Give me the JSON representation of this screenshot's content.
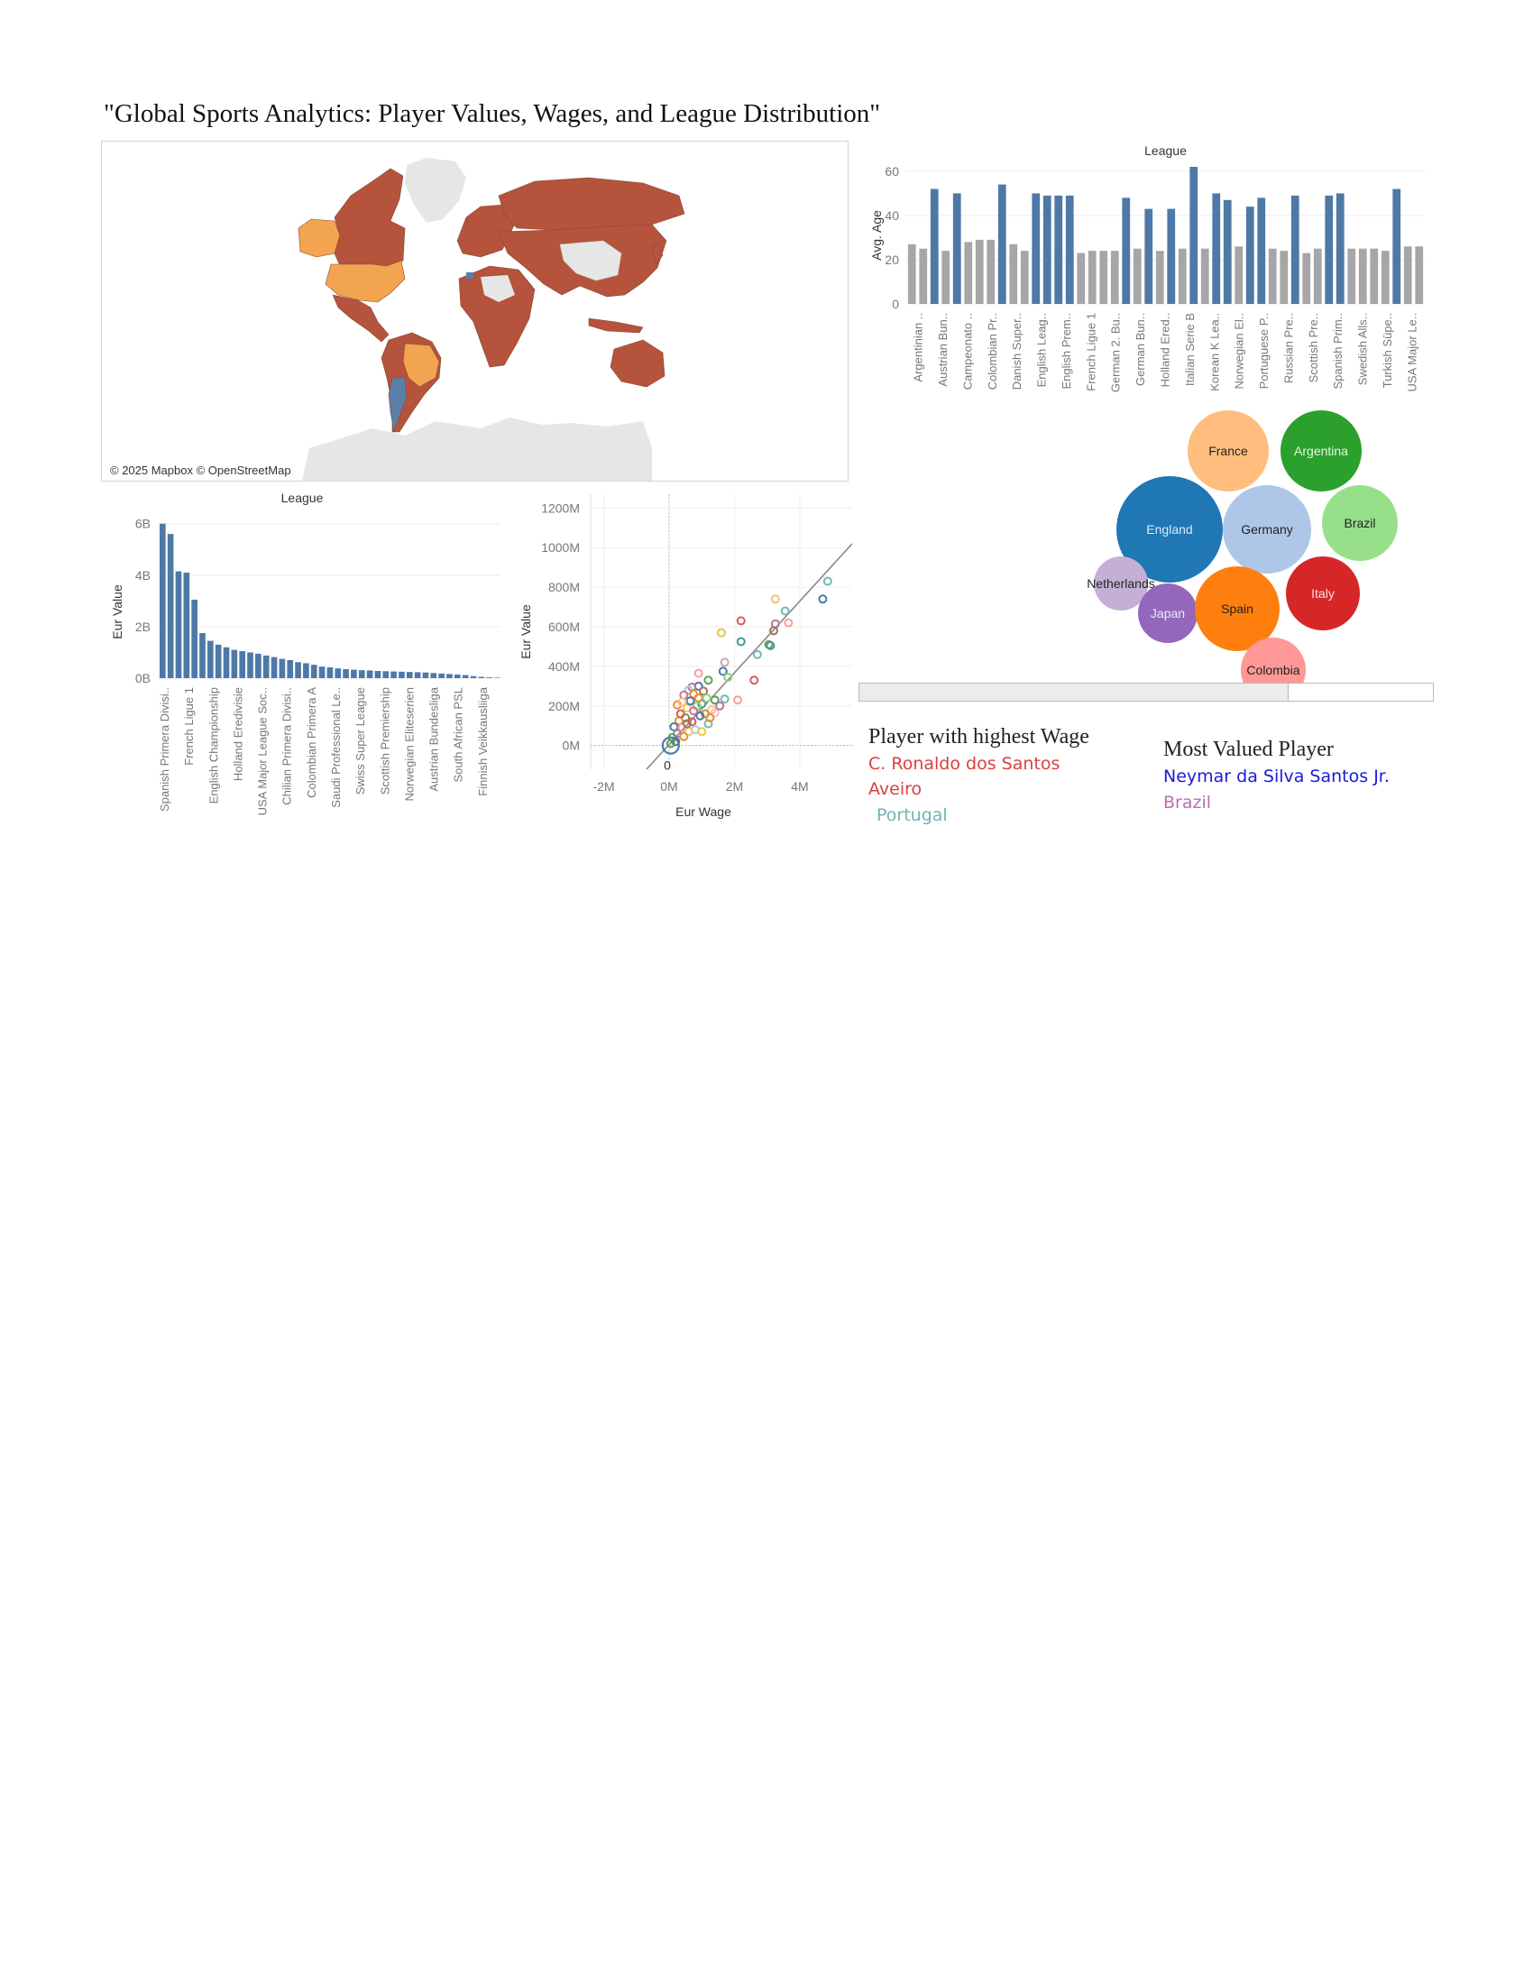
{
  "page": {
    "title": "\"Global Sports Analytics: Player Values, Wages, and League Distribution\""
  },
  "map": {
    "attribution": "© 2025 Mapbox © OpenStreetMap",
    "colors": {
      "default": "#b5533c",
      "highlight": "#f2a450",
      "blue": "#5b7fa6",
      "land": "#e6e6e6"
    }
  },
  "info": {
    "wage_heading": "Player with highest Wage",
    "wage_player_line1": "C. Ronaldo dos Santos",
    "wage_player_line2": "Aveiro",
    "wage_country": "Portugal",
    "value_heading": "Most Valued Player",
    "value_player": "Neymar da Silva Santos Jr.",
    "value_country": "Brazil",
    "colors": {
      "wage_player": "#d94040",
      "wage_country": "#6fb5b0",
      "value_player": "#1a1adb",
      "value_country": "#b86fb0"
    }
  },
  "chart_data": [
    {
      "type": "bar",
      "title": "League",
      "ylabel": "Avg. Age",
      "ylim": [
        0,
        62
      ],
      "yticks": [
        0,
        20,
        40,
        60
      ],
      "tick_labels": [
        "Argentinian ..",
        "Austrian Bun..",
        "Campeonato ..",
        "Colombian Pr..",
        "Danish Super..",
        "English Leag..",
        "English Prem..",
        "French Ligue 1",
        "German 2. Bu..",
        "German Bun..",
        "Holland Ered..",
        "Italian Serie B",
        "Korean K Lea..",
        "Norwegian El..",
        "Portuguese P..",
        "Russian Pre..",
        "Scottish Pre..",
        "Spanish Prim..",
        "Swedish Alls..",
        "Turkish Süpe..",
        "USA Major Le.."
      ],
      "series": [
        {
          "values": [
            27,
            25,
            25,
            24,
            23,
            28,
            29,
            29,
            24,
            27,
            24,
            25,
            25,
            25,
            25,
            23,
            24,
            24,
            24,
            23,
            25,
            25,
            24,
            25,
            25,
            23,
            25,
            24,
            25,
            26,
            25,
            24,
            25,
            24,
            25,
            23,
            25,
            26,
            24,
            25,
            25,
            25,
            24,
            26,
            26,
            26
          ]
        },
        {
          "values": [
            0,
            0,
            52,
            0,
            50,
            0,
            0,
            0,
            54,
            0,
            0,
            50,
            49,
            49,
            49,
            0,
            0,
            0,
            0,
            48,
            0,
            43,
            0,
            43,
            0,
            62,
            0,
            50,
            47,
            0,
            44,
            48,
            0,
            0,
            49,
            0,
            0,
            49,
            50,
            0,
            0,
            0,
            0,
            52,
            0,
            0
          ]
        }
      ],
      "colors": [
        "#a6a6a6",
        "#4e79a7"
      ]
    },
    {
      "type": "bar",
      "title": "League",
      "ylabel": "Eur Value",
      "ylim": [
        0,
        6.2
      ],
      "ytick_labels": [
        "0B",
        "2B",
        "4B",
        "6B"
      ],
      "tick_labels": [
        "Spanish Primera Divisi..",
        "French Ligue 1",
        "English Championship",
        "Holland Eredivisie",
        "USA Major League Soc..",
        "Chilian Primera Divisi..",
        "Colombian Primera A",
        "Saudi Professional Le..",
        "Swiss Super League",
        "Scottish Premiership",
        "Norwegian Eliteserien",
        "Austrian Bundesliga",
        "South African PSL",
        "Finnish Veikkausliiga"
      ],
      "values": [
        6.0,
        5.6,
        4.15,
        4.1,
        3.05,
        1.75,
        1.45,
        1.3,
        1.2,
        1.1,
        1.05,
        1.0,
        0.95,
        0.88,
        0.82,
        0.75,
        0.7,
        0.62,
        0.58,
        0.52,
        0.45,
        0.42,
        0.38,
        0.35,
        0.33,
        0.31,
        0.3,
        0.28,
        0.27,
        0.26,
        0.25,
        0.24,
        0.23,
        0.22,
        0.2,
        0.18,
        0.16,
        0.14,
        0.12,
        0.08,
        0.05,
        0.03,
        0.02
      ],
      "color": "#4e79a7"
    },
    {
      "type": "scatter",
      "xlabel": "Eur Wage",
      "ylabel": "Eur Value",
      "xlim": [
        -2.4,
        5.6
      ],
      "ylim": [
        -120,
        1270
      ],
      "xtick_labels": [
        "-2M",
        "0M",
        "2M",
        "4M"
      ],
      "ytick_labels": [
        "0M",
        "200M",
        "400M",
        "600M",
        "800M",
        "1000M",
        "1200M"
      ],
      "annotation": "0",
      "trend": [
        [
          -0.8,
          -140
        ],
        [
          5.6,
          1020
        ]
      ],
      "points": [
        {
          "x": 4.85,
          "y": 830,
          "c": "#76b7b2"
        },
        {
          "x": 4.7,
          "y": 740,
          "c": "#4e79a7"
        },
        {
          "x": 3.25,
          "y": 740,
          "c": "#ffbe7d"
        },
        {
          "x": 3.55,
          "y": 680,
          "c": "#76b7b2"
        },
        {
          "x": 3.65,
          "y": 620,
          "c": "#ff9d9a"
        },
        {
          "x": 3.25,
          "y": 615,
          "c": "#b07aa1"
        },
        {
          "x": 3.2,
          "y": 580,
          "c": "#9c755f"
        },
        {
          "x": 2.2,
          "y": 630,
          "c": "#e15759"
        },
        {
          "x": 1.6,
          "y": 570,
          "c": "#f28e2b"
        },
        {
          "x": 1.6,
          "y": 570,
          "c": "#edc948"
        },
        {
          "x": 2.2,
          "y": 525,
          "c": "#499894"
        },
        {
          "x": 3.05,
          "y": 510,
          "c": "#59a14f"
        },
        {
          "x": 3.1,
          "y": 505,
          "c": "#499894"
        },
        {
          "x": 2.7,
          "y": 460,
          "c": "#76b7b2"
        },
        {
          "x": 1.7,
          "y": 420,
          "c": "#bab0ac"
        },
        {
          "x": 1.65,
          "y": 375,
          "c": "#4e79a7"
        },
        {
          "x": 1.2,
          "y": 330,
          "c": "#59a14f"
        },
        {
          "x": 1.8,
          "y": 345,
          "c": "#8cd17d"
        },
        {
          "x": 2.6,
          "y": 330,
          "c": "#e15759"
        },
        {
          "x": 0.9,
          "y": 365,
          "c": "#ff9d9a"
        },
        {
          "x": 0.9,
          "y": 300,
          "c": "#4e79a7"
        },
        {
          "x": 0.7,
          "y": 295,
          "c": "#b07aa1"
        },
        {
          "x": 0.6,
          "y": 280,
          "c": "#a0cbe8"
        },
        {
          "x": 0.75,
          "y": 260,
          "c": "#f28e2b"
        },
        {
          "x": 1.05,
          "y": 275,
          "c": "#9d7660"
        },
        {
          "x": 1.4,
          "y": 230,
          "c": "#59a14f"
        },
        {
          "x": 2.1,
          "y": 230,
          "c": "#ff9d9a"
        },
        {
          "x": 1.7,
          "y": 235,
          "c": "#76b7b2"
        },
        {
          "x": 1.0,
          "y": 210,
          "c": "#499894"
        },
        {
          "x": 0.45,
          "y": 255,
          "c": "#d37295"
        },
        {
          "x": 0.25,
          "y": 205,
          "c": "#f28e2b"
        },
        {
          "x": 0.55,
          "y": 190,
          "c": "#edc948"
        },
        {
          "x": 0.85,
          "y": 200,
          "c": "#8cd17d"
        },
        {
          "x": 1.3,
          "y": 180,
          "c": "#ffbe7d"
        },
        {
          "x": 1.4,
          "y": 165,
          "c": "#fabfd2"
        },
        {
          "x": 1.1,
          "y": 160,
          "c": "#b6992d"
        },
        {
          "x": 0.95,
          "y": 150,
          "c": "#4e79a7"
        },
        {
          "x": 0.5,
          "y": 140,
          "c": "#59a14f"
        },
        {
          "x": 0.7,
          "y": 120,
          "c": "#e15759"
        },
        {
          "x": 0.3,
          "y": 125,
          "c": "#f28e2b"
        },
        {
          "x": 0.15,
          "y": 95,
          "c": "#4e79a7"
        },
        {
          "x": 0.4,
          "y": 90,
          "c": "#ff9d9a"
        },
        {
          "x": 0.8,
          "y": 80,
          "c": "#a0cbe8"
        },
        {
          "x": 0.6,
          "y": 70,
          "c": "#ffbe7d"
        },
        {
          "x": 0.25,
          "y": 60,
          "c": "#b07aa1"
        },
        {
          "x": 0.1,
          "y": 40,
          "c": "#59a14f"
        },
        {
          "x": 0.45,
          "y": 45,
          "c": "#f28e2b"
        },
        {
          "x": 1.0,
          "y": 70,
          "c": "#edc948"
        },
        {
          "x": 1.2,
          "y": 110,
          "c": "#76b7b2"
        },
        {
          "x": 0.35,
          "y": 160,
          "c": "#e15759"
        },
        {
          "x": 0.9,
          "y": 240,
          "c": "#f28e2b"
        },
        {
          "x": 0.65,
          "y": 225,
          "c": "#4e79a7"
        },
        {
          "x": 1.55,
          "y": 200,
          "c": "#b07aa1"
        },
        {
          "x": 1.15,
          "y": 240,
          "c": "#8cd17d"
        },
        {
          "x": 0.2,
          "y": 20,
          "c": "#4e79a7"
        },
        {
          "x": 0.05,
          "y": 10,
          "c": "#59a14f"
        },
        {
          "x": 0.55,
          "y": 110,
          "c": "#9c755f"
        },
        {
          "x": 0.75,
          "y": 175,
          "c": "#d37295"
        },
        {
          "x": 1.25,
          "y": 140,
          "c": "#f28e2b"
        },
        {
          "x": 0.4,
          "y": 220,
          "c": "#ffbe7d"
        }
      ],
      "large_point": {
        "x": 0.05,
        "y": 0,
        "c": "#4e79a7"
      }
    },
    {
      "type": "bubble",
      "bubbles": [
        {
          "label": "France",
          "color": "#ffbe7d",
          "text": "#222222"
        },
        {
          "label": "Argentina",
          "color": "#2ca02c",
          "text": "#e8f5e0"
        },
        {
          "label": "England",
          "color": "#1f77b4",
          "text": "#dde9f5"
        },
        {
          "label": "Germany",
          "color": "#aec7e8",
          "text": "#222222"
        },
        {
          "label": "Brazil",
          "color": "#98df8a",
          "text": "#222222"
        },
        {
          "label": "Netherlands",
          "color": "#c5b0d5",
          "text": "#222222"
        },
        {
          "label": "Japan",
          "color": "#9467bd",
          "text": "#f0e8f8"
        },
        {
          "label": "Spain",
          "color": "#ff7f0e",
          "text": "#222222"
        },
        {
          "label": "Italy",
          "color": "#d62728",
          "text": "#fbe2e2"
        },
        {
          "label": "Colombia",
          "color": "#ff9896",
          "text": "#222222"
        }
      ]
    }
  ]
}
